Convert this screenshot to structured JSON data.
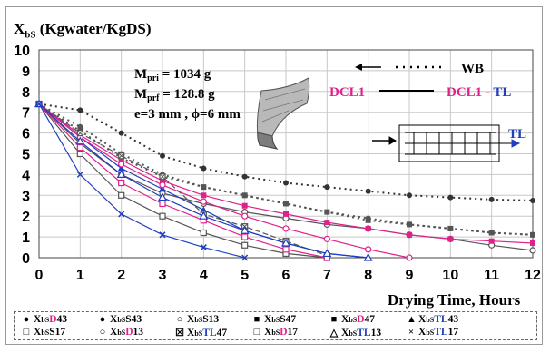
{
  "chart_data": {
    "type": "line",
    "ylabel_main": "X",
    "ylabel_sub": "bS",
    "ylabel_units": " (Kgwater/KgDS)",
    "xlabel": "Drying Time, Hours",
    "xlim": [
      0,
      12
    ],
    "ylim": [
      0,
      10
    ],
    "xticks": [
      "0",
      "1",
      "2",
      "3",
      "4",
      "5",
      "6",
      "7",
      "8",
      "9",
      "10",
      "11",
      "12"
    ],
    "yticks": [
      "0",
      "1",
      "2",
      "3",
      "4",
      "5",
      "6",
      "7",
      "8",
      "9",
      "10"
    ],
    "grid": true,
    "annotations": {
      "mpri_prefix": "M",
      "mpri_sub": "pri",
      "mpri_value": " = 1034 g",
      "mprf_prefix": "M",
      "mprf_sub": "prf",
      "mprf_value": " = 128.8 g",
      "geometry": "e=3 mm , ϕ=6 mm",
      "wb": "WB",
      "dcl1": "DCL1",
      "dcl1_tl_prefix": "DCL1 - ",
      "dcl1_tl_suffix": "TL",
      "tl": "TL"
    },
    "colors": {
      "D": "#e0218a",
      "TL": "#1f3fbf",
      "S": "#333333"
    },
    "series": [
      {
        "name": "XbSD43",
        "marker": "dot",
        "color": "#333333",
        "line": "dotted",
        "x": [
          0,
          1,
          2,
          3,
          4,
          5,
          6,
          7,
          8,
          9,
          10,
          11,
          12
        ],
        "y": [
          7.4,
          7.1,
          6.0,
          4.9,
          4.3,
          3.9,
          3.6,
          3.4,
          3.2,
          3.0,
          2.9,
          2.8,
          2.75
        ]
      },
      {
        "name": "XbSS43",
        "marker": "dot",
        "color": "#555555",
        "line": "dotted",
        "x": [
          0,
          1,
          2,
          3,
          4,
          5,
          6,
          7,
          8,
          9,
          10,
          11,
          12
        ],
        "y": [
          7.4,
          6.3,
          5.0,
          4.0,
          3.4,
          3.0,
          2.6,
          2.2,
          1.9,
          1.6,
          1.4,
          1.2,
          1.1
        ]
      },
      {
        "name": "XbSS13",
        "marker": "circle",
        "color": "#555555",
        "line": "solid",
        "x": [
          0,
          1,
          2,
          3,
          4,
          5,
          6,
          7,
          8,
          9,
          10,
          11,
          12
        ],
        "y": [
          7.4,
          5.5,
          4.0,
          3.1,
          2.6,
          2.2,
          1.9,
          1.6,
          1.4,
          1.1,
          0.9,
          0.6,
          0.35
        ]
      },
      {
        "name": "XbSS47",
        "marker": "square",
        "color": "#555555",
        "line": "dotted",
        "x": [
          0,
          1,
          2,
          3,
          4,
          5,
          6,
          7,
          8,
          9,
          10,
          11,
          12
        ],
        "y": [
          7.4,
          6.1,
          4.8,
          3.9,
          3.4,
          3.0,
          2.6,
          2.2,
          1.8,
          1.6,
          1.4,
          1.2,
          1.1
        ]
      },
      {
        "name": "XbSD47",
        "marker": "square",
        "color": "#e0218a",
        "line": "solid",
        "x": [
          0,
          1,
          2,
          3,
          4,
          5,
          6,
          7,
          8,
          9,
          10,
          11,
          12
        ],
        "y": [
          7.4,
          5.9,
          4.7,
          3.7,
          3.0,
          2.5,
          2.1,
          1.7,
          1.4,
          1.1,
          0.9,
          0.8,
          0.7
        ]
      },
      {
        "name": "XbSTL43",
        "marker": "triangle",
        "color": "#1f3fbf",
        "line": "solid",
        "x": [
          0,
          1,
          2,
          3,
          4,
          5,
          6,
          7,
          8
        ],
        "y": [
          7.4,
          5.8,
          4.3,
          3.3,
          2.3,
          1.3,
          0.7,
          0.2,
          0.0
        ]
      },
      {
        "name": "XbSS17",
        "marker": "square-open",
        "color": "#555555",
        "line": "solid",
        "x": [
          0,
          1,
          2,
          3,
          4,
          5,
          6,
          7
        ],
        "y": [
          7.4,
          5.0,
          3.0,
          2.0,
          1.2,
          0.6,
          0.2,
          0.0
        ]
      },
      {
        "name": "XbSD13",
        "marker": "circle",
        "color": "#e0218a",
        "line": "solid",
        "x": [
          0,
          1,
          2,
          3,
          4,
          5,
          6,
          7,
          8,
          9
        ],
        "y": [
          7.4,
          5.8,
          4.5,
          3.5,
          2.7,
          2.0,
          1.4,
          0.9,
          0.4,
          0.0
        ]
      },
      {
        "name": "XbSTL47",
        "marker": "square-x",
        "color": "#555555",
        "line": "dashed",
        "x": [
          0,
          1,
          2,
          3,
          4,
          5,
          6,
          7
        ],
        "y": [
          7.4,
          6.0,
          4.9,
          3.9,
          2.1,
          1.5,
          0.8,
          0.1
        ]
      },
      {
        "name": "XbSD17",
        "marker": "square-open",
        "color": "#e0218a",
        "line": "solid",
        "x": [
          0,
          1,
          2,
          3,
          4,
          5,
          6,
          7
        ],
        "y": [
          7.4,
          5.3,
          3.6,
          2.6,
          1.8,
          1.0,
          0.4,
          0.0
        ]
      },
      {
        "name": "XbSTL13",
        "marker": "triangle-open",
        "color": "#1f3fbf",
        "line": "solid",
        "x": [
          0,
          1,
          2,
          3,
          4,
          5,
          6,
          7,
          8
        ],
        "y": [
          7.4,
          5.6,
          4.0,
          2.9,
          2.0,
          1.3,
          0.7,
          0.2,
          0.0
        ]
      },
      {
        "name": "XbSTL17",
        "marker": "x",
        "color": "#1f3fbf",
        "line": "solid",
        "x": [
          0,
          1,
          2,
          3,
          4,
          5
        ],
        "y": [
          7.4,
          4.0,
          2.1,
          1.1,
          0.5,
          0.0
        ]
      }
    ],
    "legend": [
      {
        "sym": "●",
        "pre": "X",
        "sub": "bS",
        "mid": "D",
        "mid_color": "#e0218a",
        "num": "43"
      },
      {
        "sym": "●",
        "pre": "X",
        "sub": "bS",
        "mid": "S",
        "mid_color": "#000000",
        "num": "43"
      },
      {
        "sym": "○",
        "pre": "X",
        "sub": "bS",
        "mid": "S",
        "mid_color": "#000000",
        "num": "13"
      },
      {
        "sym": "■",
        "pre": "X",
        "sub": "bS",
        "mid": "S",
        "mid_color": "#000000",
        "num": "47"
      },
      {
        "sym": "■",
        "pre": "X",
        "sub": "bS",
        "mid": "D",
        "mid_color": "#e0218a",
        "num": "47"
      },
      {
        "sym": "▲",
        "pre": "X",
        "sub": "bS",
        "mid": "TL",
        "mid_color": "#1f3fbf",
        "num": "43"
      },
      {
        "sym": "□",
        "pre": "X",
        "sub": "bS",
        "mid": "S",
        "mid_color": "#000000",
        "num": "17"
      },
      {
        "sym": "○",
        "pre": "X",
        "sub": "bS",
        "mid": "D",
        "mid_color": "#e0218a",
        "num": "13"
      },
      {
        "sym": "☒",
        "pre": "X",
        "sub": "bS",
        "mid": "TL",
        "mid_color": "#1f3fbf",
        "num": "47"
      },
      {
        "sym": "□",
        "pre": "X",
        "sub": "bS",
        "mid": "D",
        "mid_color": "#e0218a",
        "num": "17"
      },
      {
        "sym": "△",
        "pre": "X",
        "sub": "bS",
        "mid": "TL",
        "mid_color": "#1f3fbf",
        "num": "13"
      },
      {
        "sym": "×",
        "pre": "X",
        "sub": "bS",
        "mid": "TL",
        "mid_color": "#1f3fbf",
        "num": "17"
      }
    ]
  }
}
